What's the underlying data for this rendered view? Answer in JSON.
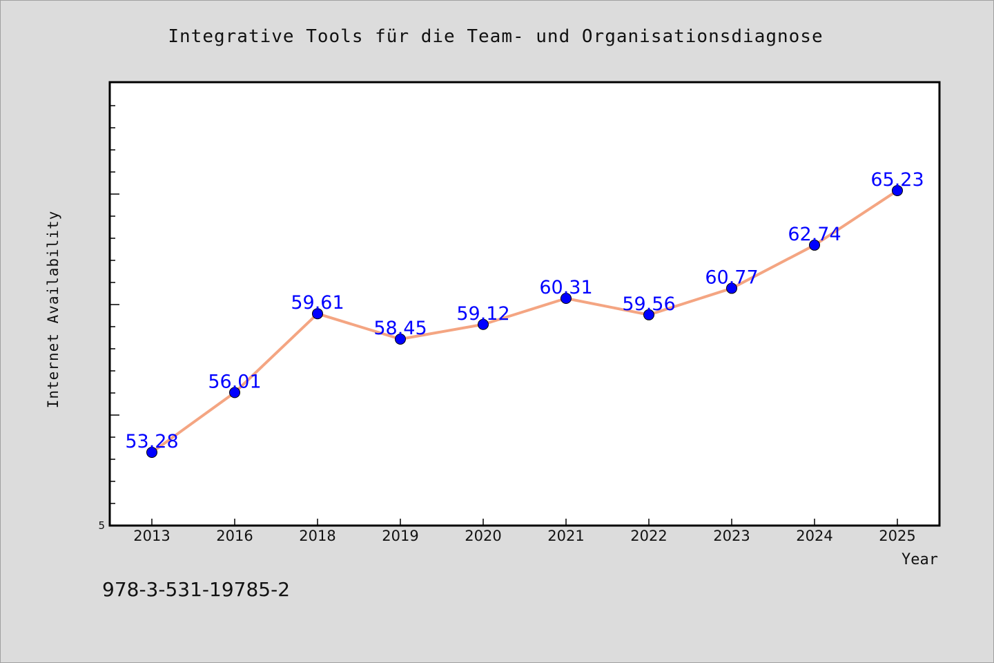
{
  "chart_data": {
    "type": "line",
    "title": "Integrative Tools für die Team- und Organisationsdiagnose",
    "xlabel": "Year",
    "ylabel": "Internet Availability",
    "categories": [
      "2013",
      "2016",
      "2018",
      "2019",
      "2020",
      "2021",
      "2022",
      "2023",
      "2024",
      "2025"
    ],
    "series": [
      {
        "values": [
          53.28,
          56.01,
          59.61,
          58.45,
          59.12,
          60.31,
          59.56,
          60.77,
          62.74,
          65.23
        ],
        "labels": [
          "53.28",
          "56.01",
          "59.61",
          "58.45",
          "59.12",
          "60.31",
          "59.56",
          "60.77",
          "62.74",
          "65.23"
        ]
      }
    ],
    "ytick_labels": [
      "5"
    ],
    "grid": false,
    "legend": "none",
    "colors": {
      "line": "#f4a582",
      "marker": "#0000ff",
      "data_label": "#0000ff",
      "background": "#dcdcdc",
      "plot_background": "#ffffff"
    }
  },
  "footer": {
    "isbn": "978-3-531-19785-2"
  }
}
